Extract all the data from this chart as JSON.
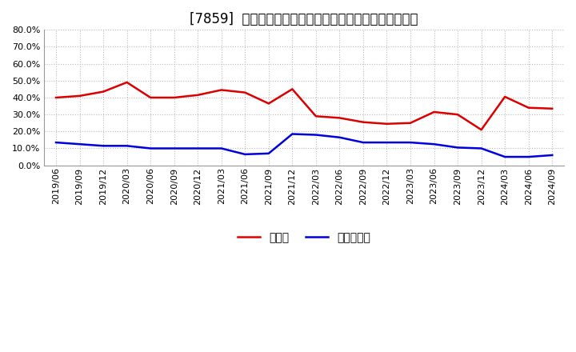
{
  "title": "[7859]  現預金、有利子負債の総資産に対する比率の推移",
  "dates": [
    "2019/06",
    "2019/09",
    "2019/12",
    "2020/03",
    "2020/06",
    "2020/09",
    "2020/12",
    "2021/03",
    "2021/06",
    "2021/09",
    "2021/12",
    "2022/03",
    "2022/06",
    "2022/09",
    "2022/12",
    "2023/03",
    "2023/06",
    "2023/09",
    "2023/12",
    "2024/03",
    "2024/06",
    "2024/09"
  ],
  "genkin": [
    0.4,
    0.41,
    0.435,
    0.49,
    0.4,
    0.4,
    0.415,
    0.445,
    0.43,
    0.365,
    0.45,
    0.29,
    0.28,
    0.255,
    0.245,
    0.25,
    0.315,
    0.3,
    0.21,
    0.405,
    0.34,
    0.335
  ],
  "yukoshi": [
    0.135,
    0.125,
    0.115,
    0.115,
    0.1,
    0.1,
    0.1,
    0.1,
    0.065,
    0.07,
    0.185,
    0.18,
    0.165,
    0.135,
    0.135,
    0.135,
    0.125,
    0.105,
    0.1,
    0.05,
    0.05,
    0.06
  ],
  "genkin_color": "#dd0000",
  "yukoshi_color": "#0000dd",
  "background_color": "#ffffff",
  "plot_bg_color": "#ffffff",
  "grid_color": "#bbbbbb",
  "ylim": [
    0.0,
    0.8
  ],
  "yticks": [
    0.0,
    0.1,
    0.2,
    0.3,
    0.4,
    0.5,
    0.6,
    0.7,
    0.8
  ],
  "legend_genkin": "現預金",
  "legend_yukoshi": "有利子負債",
  "title_fontsize": 12,
  "axis_fontsize": 8,
  "legend_fontsize": 10
}
